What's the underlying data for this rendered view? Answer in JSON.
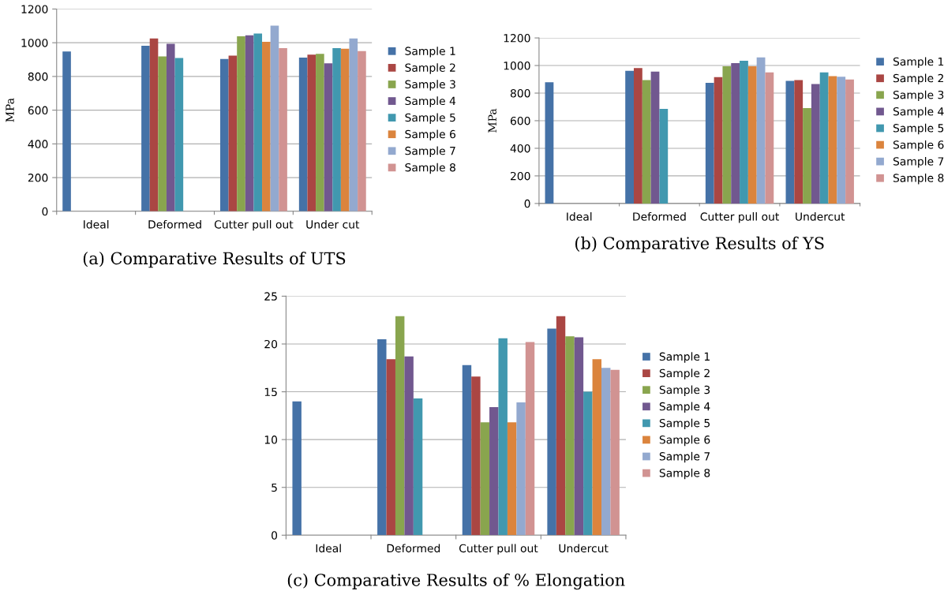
{
  "chart_data": [
    {
      "type": "bar",
      "title": "(a) Comparative Results of UTS",
      "ylabel": "MPa",
      "categories": [
        "Ideal",
        "Deformed",
        "Cutter pull out",
        "Under cut"
      ],
      "ylim": [
        0,
        1200
      ],
      "yticks": [
        0,
        200,
        400,
        600,
        800,
        1000,
        1200
      ],
      "grid": "y",
      "legend": "right",
      "series": [
        {
          "name": "Sample 1",
          "color": "#4572a7",
          "values": [
            948,
            982,
            904,
            912
          ]
        },
        {
          "name": "Sample 2",
          "color": "#aa4643",
          "values": [
            null,
            1025,
            924,
            930
          ]
        },
        {
          "name": "Sample 3",
          "color": "#89a54e",
          "values": [
            null,
            919,
            1038,
            934
          ]
        },
        {
          "name": "Sample 4",
          "color": "#71588f",
          "values": [
            null,
            994,
            1044,
            878
          ]
        },
        {
          "name": "Sample 5",
          "color": "#4198af",
          "values": [
            null,
            910,
            1055,
            968
          ]
        },
        {
          "name": "Sample 6",
          "color": "#db843d",
          "values": [
            null,
            null,
            1005,
            965
          ]
        },
        {
          "name": "Sample 7",
          "color": "#93a9cf",
          "values": [
            null,
            null,
            1102,
            1025
          ]
        },
        {
          "name": "Sample 8",
          "color": "#d19392",
          "values": [
            null,
            null,
            968,
            951
          ]
        }
      ]
    },
    {
      "type": "bar",
      "title": "(b) Comparative Results of YS",
      "ylabel": "MPa",
      "categories": [
        "Ideal",
        "Deformed",
        "Cutter pull out",
        "Undercut"
      ],
      "ylim": [
        0,
        1200
      ],
      "yticks": [
        0,
        200,
        400,
        600,
        800,
        1000,
        1200
      ],
      "grid": "y",
      "legend": "right",
      "series": [
        {
          "name": "Sample 1",
          "color": "#4572a7",
          "values": [
            878,
            961,
            874,
            889
          ]
        },
        {
          "name": "Sample 2",
          "color": "#aa4643",
          "values": [
            null,
            982,
            916,
            894
          ]
        },
        {
          "name": "Sample 3",
          "color": "#89a54e",
          "values": [
            null,
            894,
            995,
            691
          ]
        },
        {
          "name": "Sample 4",
          "color": "#71588f",
          "values": [
            null,
            956,
            1017,
            866
          ]
        },
        {
          "name": "Sample 5",
          "color": "#4198af",
          "values": [
            null,
            685,
            1034,
            950
          ]
        },
        {
          "name": "Sample 6",
          "color": "#db843d",
          "values": [
            null,
            null,
            995,
            923
          ]
        },
        {
          "name": "Sample 7",
          "color": "#93a9cf",
          "values": [
            null,
            null,
            1059,
            919
          ]
        },
        {
          "name": "Sample 8",
          "color": "#d19392",
          "values": [
            null,
            null,
            950,
            899
          ]
        }
      ]
    },
    {
      "type": "bar",
      "title": "(c) Comparative Results of % Elongation",
      "categories": [
        "Ideal",
        "Deformed",
        "Cutter pull out",
        "Undercut"
      ],
      "ylim": [
        0,
        25
      ],
      "yticks": [
        0,
        5,
        10,
        15,
        20,
        25
      ],
      "grid": "y",
      "legend": "right",
      "series": [
        {
          "name": "Sample 1",
          "color": "#4572a7",
          "values": [
            14.0,
            20.5,
            17.8,
            21.6
          ]
        },
        {
          "name": "Sample 2",
          "color": "#aa4643",
          "values": [
            null,
            18.4,
            16.6,
            22.9
          ]
        },
        {
          "name": "Sample 3",
          "color": "#89a54e",
          "values": [
            null,
            22.9,
            11.8,
            20.8
          ]
        },
        {
          "name": "Sample 4",
          "color": "#71588f",
          "values": [
            null,
            18.7,
            13.4,
            20.7
          ]
        },
        {
          "name": "Sample 5",
          "color": "#4198af",
          "values": [
            null,
            14.3,
            20.6,
            15.0
          ]
        },
        {
          "name": "Sample 6",
          "color": "#db843d",
          "values": [
            null,
            null,
            11.8,
            18.4
          ]
        },
        {
          "name": "Sample 7",
          "color": "#93a9cf",
          "values": [
            null,
            null,
            13.9,
            17.5
          ]
        },
        {
          "name": "Sample 8",
          "color": "#d19392",
          "values": [
            null,
            null,
            20.2,
            17.3
          ]
        }
      ]
    }
  ]
}
